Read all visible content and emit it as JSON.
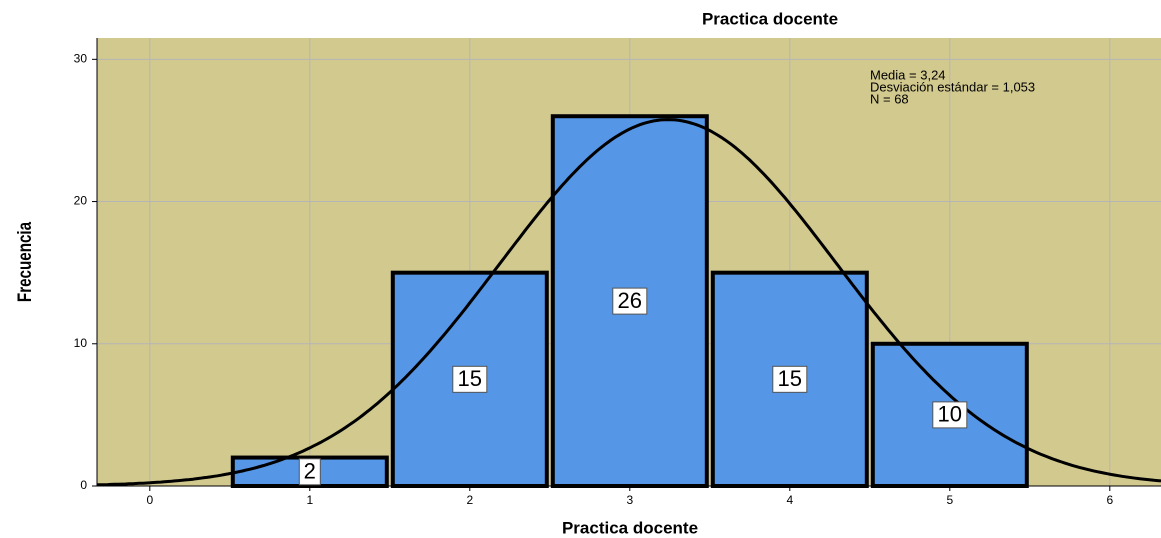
{
  "chart_data": {
    "type": "histogram",
    "title": "Practica docente",
    "x_label": "Practica docente",
    "y_label": "Frecuencia",
    "bins": [
      0.5,
      1.5,
      2.5,
      3.5,
      4.5,
      5.5
    ],
    "values": [
      2,
      15,
      26,
      15,
      10
    ],
    "color": "#5596e6",
    "background": "#d2c98f",
    "xlim": [
      -0.33,
      6.32
    ],
    "ylim": [
      0,
      31.5
    ],
    "xticks": [
      0,
      1,
      2,
      3,
      4,
      5,
      6
    ],
    "yticks": [
      0,
      10,
      20,
      30
    ],
    "grid": true,
    "stats": {
      "mean": {
        "value": 3.24,
        "label": "Media = 3,24"
      },
      "sd": {
        "value": 1.053,
        "label": "Desviación estándar = 1,053"
      },
      "n": {
        "value": 68,
        "label": "N = 68"
      }
    }
  }
}
